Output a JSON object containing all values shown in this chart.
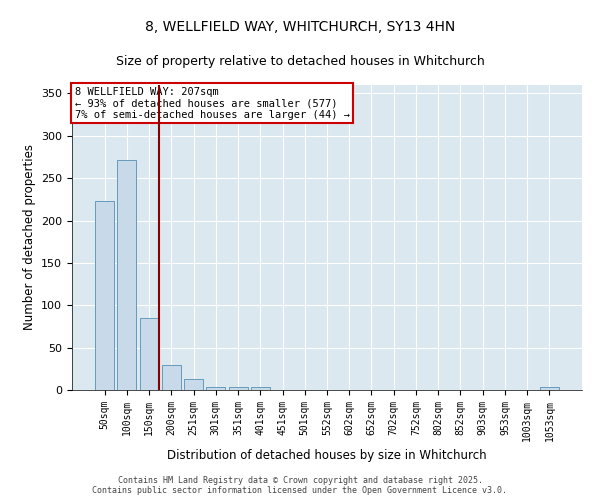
{
  "title1": "8, WELLFIELD WAY, WHITCHURCH, SY13 4HN",
  "title2": "Size of property relative to detached houses in Whitchurch",
  "xlabel": "Distribution of detached houses by size in Whitchurch",
  "ylabel": "Number of detached properties",
  "bar_color": "#c8daea",
  "bar_edge_color": "#6699bb",
  "categories": [
    "50sqm",
    "100sqm",
    "150sqm",
    "200sqm",
    "251sqm",
    "301sqm",
    "351sqm",
    "401sqm",
    "451sqm",
    "501sqm",
    "552sqm",
    "602sqm",
    "652sqm",
    "702sqm",
    "752sqm",
    "802sqm",
    "852sqm",
    "903sqm",
    "953sqm",
    "1003sqm",
    "1053sqm"
  ],
  "values": [
    223,
    271,
    85,
    30,
    13,
    4,
    4,
    4,
    0,
    0,
    0,
    0,
    0,
    0,
    0,
    0,
    0,
    0,
    0,
    0,
    3
  ],
  "ylim": [
    0,
    360
  ],
  "yticks": [
    0,
    50,
    100,
    150,
    200,
    250,
    300,
    350
  ],
  "property_line_x": 2.43,
  "property_line_color": "#880000",
  "annotation_line1": "8 WELLFIELD WAY: 207sqm",
  "annotation_line2": "← 93% of detached houses are smaller (577)",
  "annotation_line3": "7% of semi-detached houses are larger (44) →",
  "annotation_box_color": "#cc0000",
  "background_color": "#dce8f0",
  "grid_color": "#ffffff",
  "footer_text": "Contains HM Land Registry data © Crown copyright and database right 2025.\nContains public sector information licensed under the Open Government Licence v3.0.",
  "title1_fontsize": 10,
  "title2_fontsize": 9,
  "xlabel_fontsize": 8.5,
  "ylabel_fontsize": 8.5
}
